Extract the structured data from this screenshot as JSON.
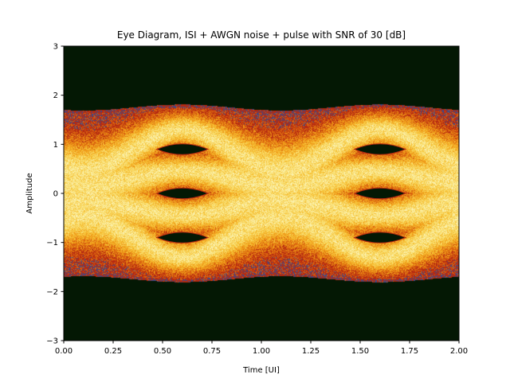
{
  "chart_data": {
    "type": "heatmap",
    "title": "Eye Diagram, ISI + AWGN noise + pulse with SNR of 30 [dB]",
    "xlabel": "Time [UI]",
    "ylabel": "Amplitude",
    "xlim": [
      0.0,
      2.0
    ],
    "ylim": [
      -3,
      3
    ],
    "x_ticks": [
      "0.00",
      "0.25",
      "0.50",
      "0.75",
      "1.00",
      "1.25",
      "1.50",
      "1.75",
      "2.00"
    ],
    "y_ticks": [
      "3",
      "2",
      "1",
      "0",
      "−1",
      "−2",
      "−3"
    ],
    "grid": false,
    "background_color": "#041804",
    "colormap": [
      "#041804",
      "#1f6b2b",
      "#3a4c8c",
      "#b52a12",
      "#d9620f",
      "#ef9b1a",
      "#f6c138",
      "#f9de70",
      "#fbf1ae"
    ],
    "signal_levels": [
      -1.3,
      -0.45,
      0.45,
      1.3
    ],
    "eye_center_time": 0.6,
    "envelope_amplitude": 1.75,
    "eye_openings": [
      {
        "x_center": 0.6,
        "y_center": 0.9
      },
      {
        "x_center": 0.6,
        "y_center": 0.0
      },
      {
        "x_center": 0.6,
        "y_center": -0.9
      },
      {
        "x_center": 1.6,
        "y_center": 0.9
      },
      {
        "x_center": 1.6,
        "y_center": 0.0
      },
      {
        "x_center": 1.6,
        "y_center": -0.9
      }
    ]
  }
}
